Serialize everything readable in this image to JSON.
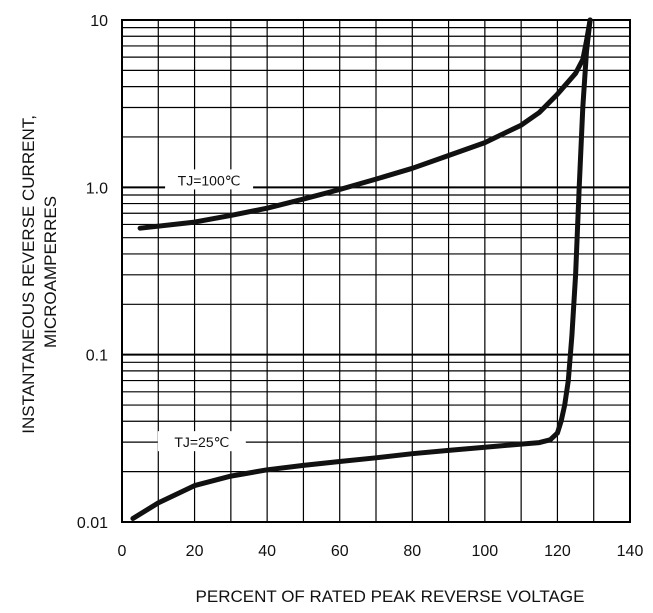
{
  "chart_data": {
    "type": "line",
    "title": "",
    "xlabel": "PERCENT OF RATED PEAK REVERSE VOLTAGE",
    "ylabel_lines": [
      "INSTANTANEOUS REVERSE CURRENT,",
      "MICROAMPERRES"
    ],
    "xlim": [
      0,
      140
    ],
    "ylim": [
      0.01,
      10
    ],
    "yscale": "log",
    "grid": true,
    "x_ticks": [
      "0",
      "20",
      "40",
      "60",
      "80",
      "100",
      "120",
      "140"
    ],
    "y_ticks": [
      {
        "value": 10,
        "label": "10"
      },
      {
        "value": 1,
        "label": "1.0"
      },
      {
        "value": 0.1,
        "label": "0.1"
      },
      {
        "value": 0.01,
        "label": "0.01"
      }
    ],
    "series": [
      {
        "annotation": "TJ=100℃",
        "annotation_at": [
          24,
          1.1
        ],
        "x": [
          5,
          20,
          30,
          40,
          50,
          60,
          70,
          80,
          90,
          100,
          110,
          115,
          120,
          125,
          127,
          128,
          129
        ],
        "y": [
          0.57,
          0.62,
          0.68,
          0.75,
          0.85,
          0.97,
          1.12,
          1.3,
          1.55,
          1.85,
          2.35,
          2.8,
          3.6,
          4.8,
          5.8,
          7.5,
          10
        ]
      },
      {
        "annotation": "TJ=25℃",
        "annotation_at": [
          22,
          0.03
        ],
        "x": [
          3,
          10,
          20,
          30,
          40,
          50,
          60,
          70,
          80,
          90,
          100,
          110,
          115,
          118,
          120,
          121,
          122,
          123,
          124,
          125,
          126,
          127,
          128,
          129
        ],
        "y": [
          0.0105,
          0.013,
          0.0165,
          0.0188,
          0.0205,
          0.0218,
          0.023,
          0.0242,
          0.0256,
          0.0268,
          0.028,
          0.0292,
          0.0298,
          0.031,
          0.034,
          0.04,
          0.05,
          0.07,
          0.13,
          0.3,
          1.0,
          3.0,
          6.5,
          10
        ]
      }
    ]
  }
}
